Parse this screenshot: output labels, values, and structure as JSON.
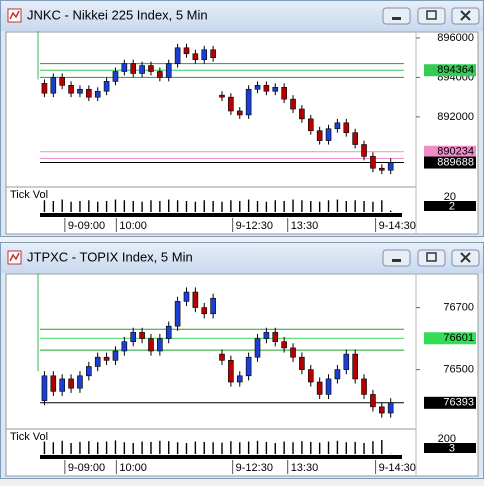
{
  "chart_data": [
    {
      "type": "candlestick",
      "title": "JNKC - Nikkei 225 Index, 5 Min",
      "up_color": "#1c3fcf",
      "down_color": "#b40000",
      "open": [
        893700,
        893200,
        894000,
        893600,
        893200,
        893400,
        893000,
        893300,
        893800,
        894300,
        894700,
        894200,
        894600,
        894300,
        894000,
        894700,
        895500,
        895200,
        894900,
        895400,
        893100,
        893000,
        892300,
        892100,
        893400,
        893600,
        893300,
        893500,
        892900,
        892400,
        891900,
        891300,
        890800,
        891400,
        891700,
        891200,
        890600,
        890000,
        889400,
        889300
      ],
      "high": [
        893900,
        894200,
        894200,
        893800,
        893600,
        893600,
        893500,
        894000,
        894500,
        894900,
        894900,
        894800,
        894800,
        894500,
        894900,
        895700,
        895700,
        895400,
        895600,
        895600,
        893300,
        893200,
        892500,
        893600,
        893800,
        893800,
        893700,
        893700,
        893100,
        892600,
        892100,
        891500,
        891600,
        891900,
        891900,
        891400,
        890800,
        890200,
        889600,
        889900
      ],
      "low": [
        893000,
        893000,
        893400,
        893000,
        893000,
        892800,
        892800,
        893100,
        893600,
        894100,
        894000,
        894000,
        894100,
        893800,
        893800,
        894500,
        895000,
        894700,
        894700,
        894800,
        892800,
        892100,
        891900,
        891900,
        893200,
        893100,
        893100,
        892700,
        892200,
        891700,
        891100,
        890600,
        890600,
        891200,
        891000,
        890400,
        889800,
        889200,
        889100,
        889100
      ],
      "close": [
        893200,
        894000,
        893600,
        893200,
        893400,
        893000,
        893300,
        893800,
        894300,
        894700,
        894200,
        894600,
        894300,
        894000,
        894700,
        895500,
        895200,
        894900,
        895400,
        895000,
        893000,
        892300,
        892100,
        893400,
        893600,
        893300,
        893500,
        892900,
        892400,
        891900,
        891300,
        890800,
        891400,
        891700,
        891200,
        890600,
        890000,
        889400,
        889300,
        889688
      ],
      "xlim": [
        -0.5,
        40.5
      ],
      "xticks": [
        {
          "value": 2.3,
          "label": "9-09:00"
        },
        {
          "value": 8.1,
          "label": "10:00"
        },
        {
          "value": 21.2,
          "label": "9-12:30"
        },
        {
          "value": 27.4,
          "label": "13:30"
        },
        {
          "value": 37.3,
          "label": "9-14:30"
        }
      ],
      "ylim": [
        888550,
        896250
      ],
      "yticks": [
        892000,
        894000,
        896000
      ],
      "levels": [
        {
          "value": 894700,
          "color": "#20a030"
        },
        {
          "value": 894364,
          "color": "#33cc55",
          "boxed": true,
          "text_color": "#000000"
        },
        {
          "value": 894000,
          "color": "#20a030"
        },
        {
          "value": 890234,
          "color": "#f08cc8",
          "boxed": true,
          "text_color": "#000000"
        },
        {
          "value": 889900,
          "color": "#f08cc8"
        },
        {
          "value": 889688,
          "color": "#000000",
          "boxed": true,
          "text_color": "#ffffff"
        }
      ],
      "volume": {
        "label": "Tick Vol",
        "vlim": [
          0,
          30
        ],
        "vticks": [
          20
        ],
        "current": 2,
        "values": [
          16,
          15,
          17,
          14,
          15,
          16,
          14,
          15,
          17,
          16,
          15,
          14,
          16,
          15,
          17,
          16,
          15,
          14,
          16,
          15,
          14,
          16,
          15,
          17,
          15,
          14,
          16,
          15,
          17,
          16,
          15,
          14,
          16,
          17,
          15,
          16,
          15,
          14,
          16,
          2
        ]
      }
    },
    {
      "type": "candlestick",
      "title": "JTPXC - TOPIX Index, 5 Min",
      "up_color": "#1c3fcf",
      "down_color": "#b40000",
      "open": [
        76400,
        76480,
        76430,
        76470,
        76440,
        76480,
        76510,
        76540,
        76530,
        76560,
        76590,
        76620,
        76600,
        76560,
        76600,
        76640,
        76720,
        76750,
        76700,
        76680,
        76550,
        76530,
        76460,
        76480,
        76540,
        76600,
        76620,
        76590,
        76570,
        76540,
        76500,
        76460,
        76420,
        76470,
        76500,
        76550,
        76470,
        76420,
        76380,
        76360
      ],
      "high": [
        76495,
        76495,
        76485,
        76485,
        76495,
        76525,
        76555,
        76555,
        76575,
        76605,
        76635,
        76635,
        76615,
        76615,
        76655,
        76735,
        76765,
        76765,
        76715,
        76745,
        76565,
        76545,
        76495,
        76555,
        76615,
        76635,
        76635,
        76605,
        76585,
        76555,
        76515,
        76475,
        76485,
        76515,
        76565,
        76565,
        76485,
        76435,
        76395,
        76408
      ],
      "low": [
        76385,
        76415,
        76415,
        76425,
        76425,
        76465,
        76495,
        76515,
        76515,
        76545,
        76575,
        76585,
        76545,
        76545,
        76585,
        76625,
        76705,
        76685,
        76665,
        76665,
        76515,
        76445,
        76445,
        76465,
        76525,
        76585,
        76575,
        76555,
        76525,
        76485,
        76445,
        76405,
        76405,
        76455,
        76485,
        76455,
        76405,
        76365,
        76345,
        76345
      ],
      "close": [
        76480,
        76430,
        76470,
        76440,
        76480,
        76510,
        76540,
        76530,
        76560,
        76590,
        76620,
        76600,
        76560,
        76600,
        76640,
        76720,
        76750,
        76700,
        76680,
        76730,
        76530,
        76460,
        76480,
        76540,
        76600,
        76620,
        76590,
        76570,
        76540,
        76500,
        76460,
        76420,
        76470,
        76500,
        76550,
        76470,
        76420,
        76380,
        76360,
        76393
      ],
      "xlim": [
        -0.5,
        40.5
      ],
      "xticks": [
        {
          "value": 2.3,
          "label": "9-09:00"
        },
        {
          "value": 8.1,
          "label": "10:00"
        },
        {
          "value": 21.2,
          "label": "9-12:30"
        },
        {
          "value": 27.4,
          "label": "13:30"
        },
        {
          "value": 37.3,
          "label": "9-14:30"
        }
      ],
      "ylim": [
        76315,
        76805
      ],
      "yticks": [
        76500,
        76700
      ],
      "levels": [
        {
          "value": 76630,
          "color": "#20a030"
        },
        {
          "value": 76601,
          "color": "#33dd55",
          "boxed": true,
          "text_color": "#000000"
        },
        {
          "value": 76563,
          "color": "#20a030"
        },
        {
          "value": 76393,
          "color": "#000000",
          "boxed": true,
          "text_color": "#ffffff"
        }
      ],
      "volume": {
        "label": "Tick Vol",
        "vlim": [
          0,
          300
        ],
        "vticks": [
          200
        ],
        "current": 3,
        "values": [
          170,
          160,
          180,
          150,
          165,
          175,
          160,
          170,
          185,
          160,
          150,
          170,
          165,
          180,
          175,
          160,
          150,
          170,
          165,
          160,
          155,
          175,
          160,
          170,
          180,
          165,
          150,
          170,
          160,
          175,
          165,
          155,
          170,
          180,
          160,
          165,
          150,
          175,
          190,
          3
        ]
      }
    }
  ]
}
